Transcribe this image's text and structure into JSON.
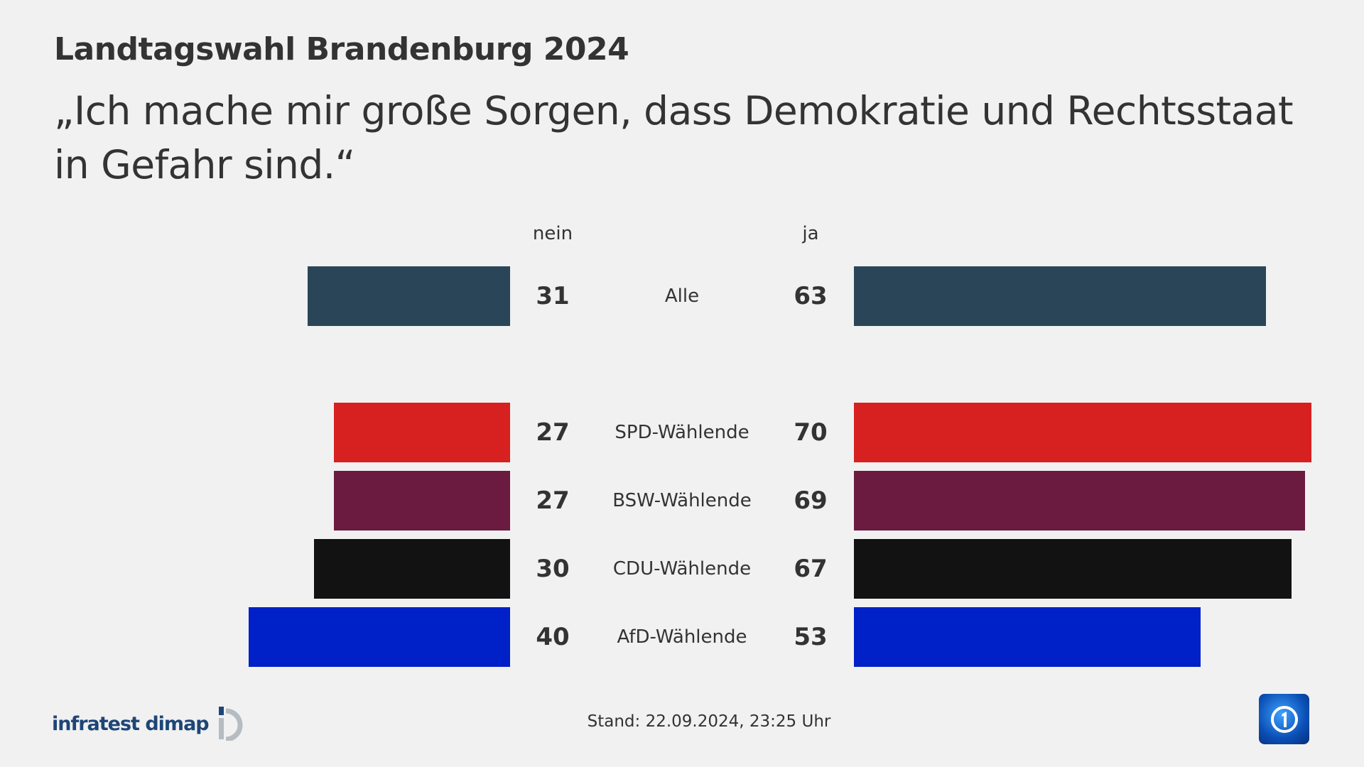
{
  "header": {
    "title": "Landtagswahl Brandenburg 2024",
    "subtitle": "„Ich mache mir große Sorgen, dass Demokratie und Rechtsstaat in Gefahr sind.“"
  },
  "chart_data": {
    "type": "bar",
    "orientation": "diverging-horizontal",
    "title": "Landtagswahl Brandenburg 2024",
    "columns": {
      "left": "nein",
      "right": "ja"
    },
    "categories": [
      "Alle",
      "SPD-Wählende",
      "BSW-Wählende",
      "CDU-Wählende",
      "AfD-Wählende"
    ],
    "series": [
      {
        "name": "nein",
        "values": [
          31,
          27,
          27,
          30,
          40
        ]
      },
      {
        "name": "ja",
        "values": [
          63,
          70,
          69,
          67,
          53
        ]
      }
    ],
    "colors": [
      "#2a4557",
      "#d72020",
      "#6b1a40",
      "#121212",
      "#0020c8"
    ],
    "unit": "%"
  },
  "footer": {
    "source": "infratest dimap",
    "stand": "Stand:  22.09.2024, 23:25 Uhr",
    "broadcaster_logo": "ARD 1"
  }
}
